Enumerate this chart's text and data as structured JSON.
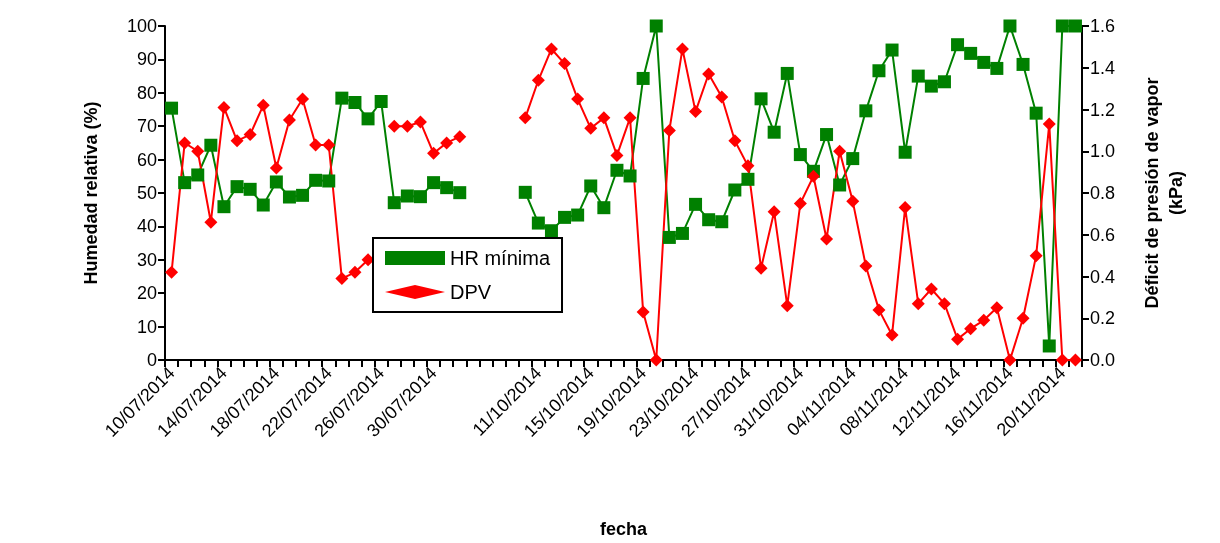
{
  "chart_data": {
    "type": "line",
    "xlabel": "fecha",
    "ylabel": "Humedad relativa (%)",
    "y2label": "Déficit de presión de vapor\n(kPa)",
    "categories": [
      "10/07/2014",
      null,
      null,
      null,
      "14/07/2014",
      null,
      null,
      null,
      "18/07/2014",
      null,
      null,
      null,
      "22/07/2014",
      null,
      null,
      null,
      "26/07/2014",
      null,
      null,
      null,
      "30/07/2014",
      null,
      null,
      null,
      null,
      null,
      null,
      null,
      "11/10/2014",
      null,
      null,
      null,
      "15/10/2014",
      null,
      null,
      null,
      "19/10/2014",
      null,
      null,
      null,
      "23/10/2014",
      null,
      null,
      null,
      "27/10/2014",
      null,
      null,
      null,
      "31/10/2014",
      null,
      null,
      null,
      "04/11/2014",
      null,
      null,
      null,
      "08/11/2014",
      null,
      null,
      null,
      "12/11/2014",
      null,
      null,
      null,
      "16/11/2014",
      null,
      null,
      null,
      "20/11/2014",
      null
    ],
    "series": [
      {
        "name": "HR mínima",
        "color": "#008000",
        "marker": "square",
        "values": [
          75.4,
          53.1,
          55.4,
          64.3,
          45.9,
          51.9,
          51.1,
          46.4,
          53.3,
          48.8,
          49.3,
          53.8,
          53.6,
          78.4,
          77.1,
          72.2,
          77.4,
          47.1,
          49.1,
          48.9,
          53.1,
          51.6,
          50.1,
          null,
          null,
          null,
          null,
          50.2,
          41.0,
          38.7,
          42.7,
          43.4,
          52.1,
          45.6,
          56.8,
          55.1,
          84.3,
          100,
          36.7,
          37.9,
          46.6,
          42.0,
          41.4,
          50.9,
          54.1,
          78.2,
          68.2,
          85.8,
          61.5,
          56.5,
          67.5,
          52.4,
          60.3,
          74.6,
          86.6,
          92.8,
          62.2,
          85.0,
          82.0,
          83.3,
          94.4,
          91.8,
          89.1,
          87.3,
          100,
          88.5,
          73.9,
          4.2,
          100,
          100
        ]
      },
      {
        "name": "DPV",
        "color": "#ff0000",
        "marker": "diamond",
        "axis": "y2",
        "values": [
          0.42,
          1.04,
          1.0,
          0.66,
          1.21,
          1.05,
          1.08,
          1.22,
          0.92,
          1.15,
          1.25,
          1.03,
          1.03,
          0.39,
          0.42,
          0.48,
          null,
          1.12,
          1.12,
          1.14,
          0.99,
          1.04,
          1.07,
          null,
          null,
          null,
          null,
          1.16,
          1.34,
          1.49,
          1.42,
          1.25,
          1.11,
          1.16,
          0.98,
          1.16,
          0.23,
          0,
          1.1,
          1.49,
          1.19,
          1.37,
          1.26,
          1.05,
          0.93,
          0.44,
          0.71,
          0.26,
          0.75,
          0.88,
          0.58,
          1.0,
          0.76,
          0.45,
          0.24,
          0.12,
          0.73,
          0.27,
          0.34,
          0.27,
          0.1,
          0.15,
          0.19,
          0.25,
          0,
          0.2,
          0.5,
          1.13,
          0,
          0
        ]
      }
    ],
    "ylim": [
      0,
      100
    ],
    "yticks": [
      0,
      10,
      20,
      30,
      40,
      50,
      60,
      70,
      80,
      90,
      100
    ],
    "y2lim": [
      0,
      1.6
    ],
    "y2ticks": [
      {
        "value": 0,
        "label": "0.0"
      },
      {
        "value": 0.2,
        "label": "0.2"
      },
      {
        "value": 0.4,
        "label": "0.4"
      },
      {
        "value": 0.6,
        "label": "0.6"
      },
      {
        "value": 0.8,
        "label": "0.8"
      },
      {
        "value": 1.0,
        "label": "1.0"
      },
      {
        "value": 1.2,
        "label": "1.2"
      },
      {
        "value": 1.4,
        "label": "1.4"
      },
      {
        "value": 1.6,
        "label": "1.6"
      }
    ],
    "legend": "bottom left",
    "grid": false,
    "line_style": "solid"
  }
}
